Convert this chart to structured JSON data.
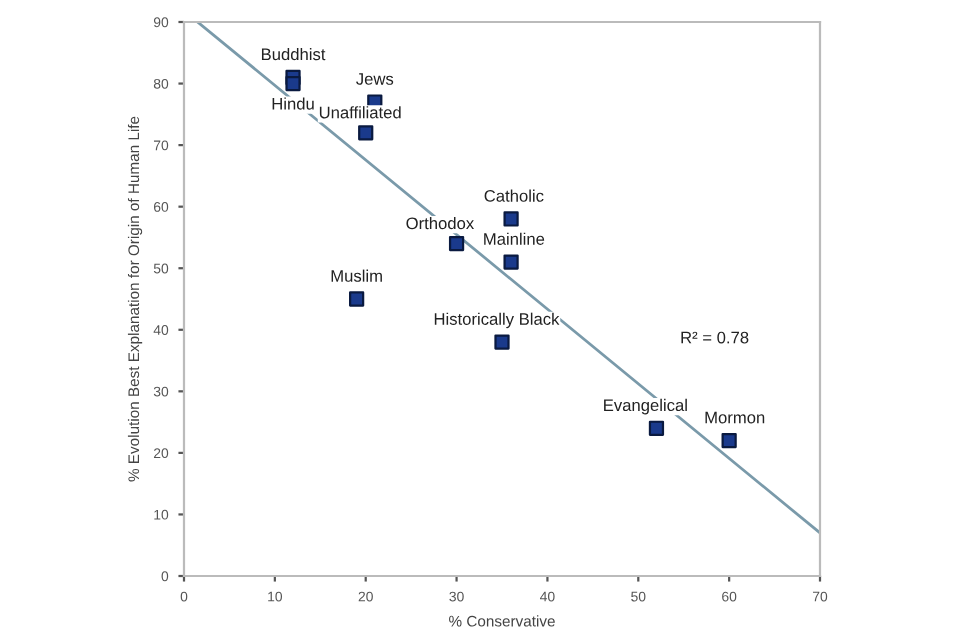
{
  "chart_data": {
    "type": "scatter",
    "xlabel": "% Conservative",
    "ylabel": "% Evolution Best Explanation for Origin of Human Life",
    "xlim": [
      0,
      70
    ],
    "ylim": [
      0,
      90
    ],
    "xticks": [
      0,
      10,
      20,
      30,
      40,
      50,
      60,
      70
    ],
    "yticks": [
      0,
      10,
      20,
      30,
      40,
      50,
      60,
      70,
      80,
      90
    ],
    "grid": false,
    "series": [
      {
        "marker": "square",
        "color": "#1a3a8c",
        "x": [
          12,
          12,
          21,
          20,
          36,
          30,
          36,
          19,
          35,
          52,
          60
        ],
        "values": [
          81,
          80,
          77,
          72,
          58,
          54,
          51,
          45,
          38,
          24,
          22
        ]
      },
      {
        "type": "line",
        "color": "#7a9aaa",
        "x": [
          1.5,
          70
        ],
        "values": [
          90,
          7
        ]
      }
    ],
    "annotations": [
      {
        "text": "Buddhist",
        "x": 12,
        "y": 81
      },
      {
        "text": "Hindu",
        "x": 12,
        "y": 80
      },
      {
        "text": "Jews",
        "x": 21,
        "y": 77
      },
      {
        "text": "Unaffiliated",
        "x": 20,
        "y": 72
      },
      {
        "text": "Catholic",
        "x": 36,
        "y": 58
      },
      {
        "text": "Orthodox",
        "x": 30,
        "y": 54
      },
      {
        "text": "Mainline",
        "x": 36,
        "y": 51
      },
      {
        "text": "Muslim",
        "x": 19,
        "y": 45
      },
      {
        "text": "Historically Black",
        "x": 35,
        "y": 38
      },
      {
        "text": "Evangelical",
        "x": 52,
        "y": 24
      },
      {
        "text": "Mormon",
        "x": 60,
        "y": 22
      },
      "R² = 0.78"
    ]
  }
}
